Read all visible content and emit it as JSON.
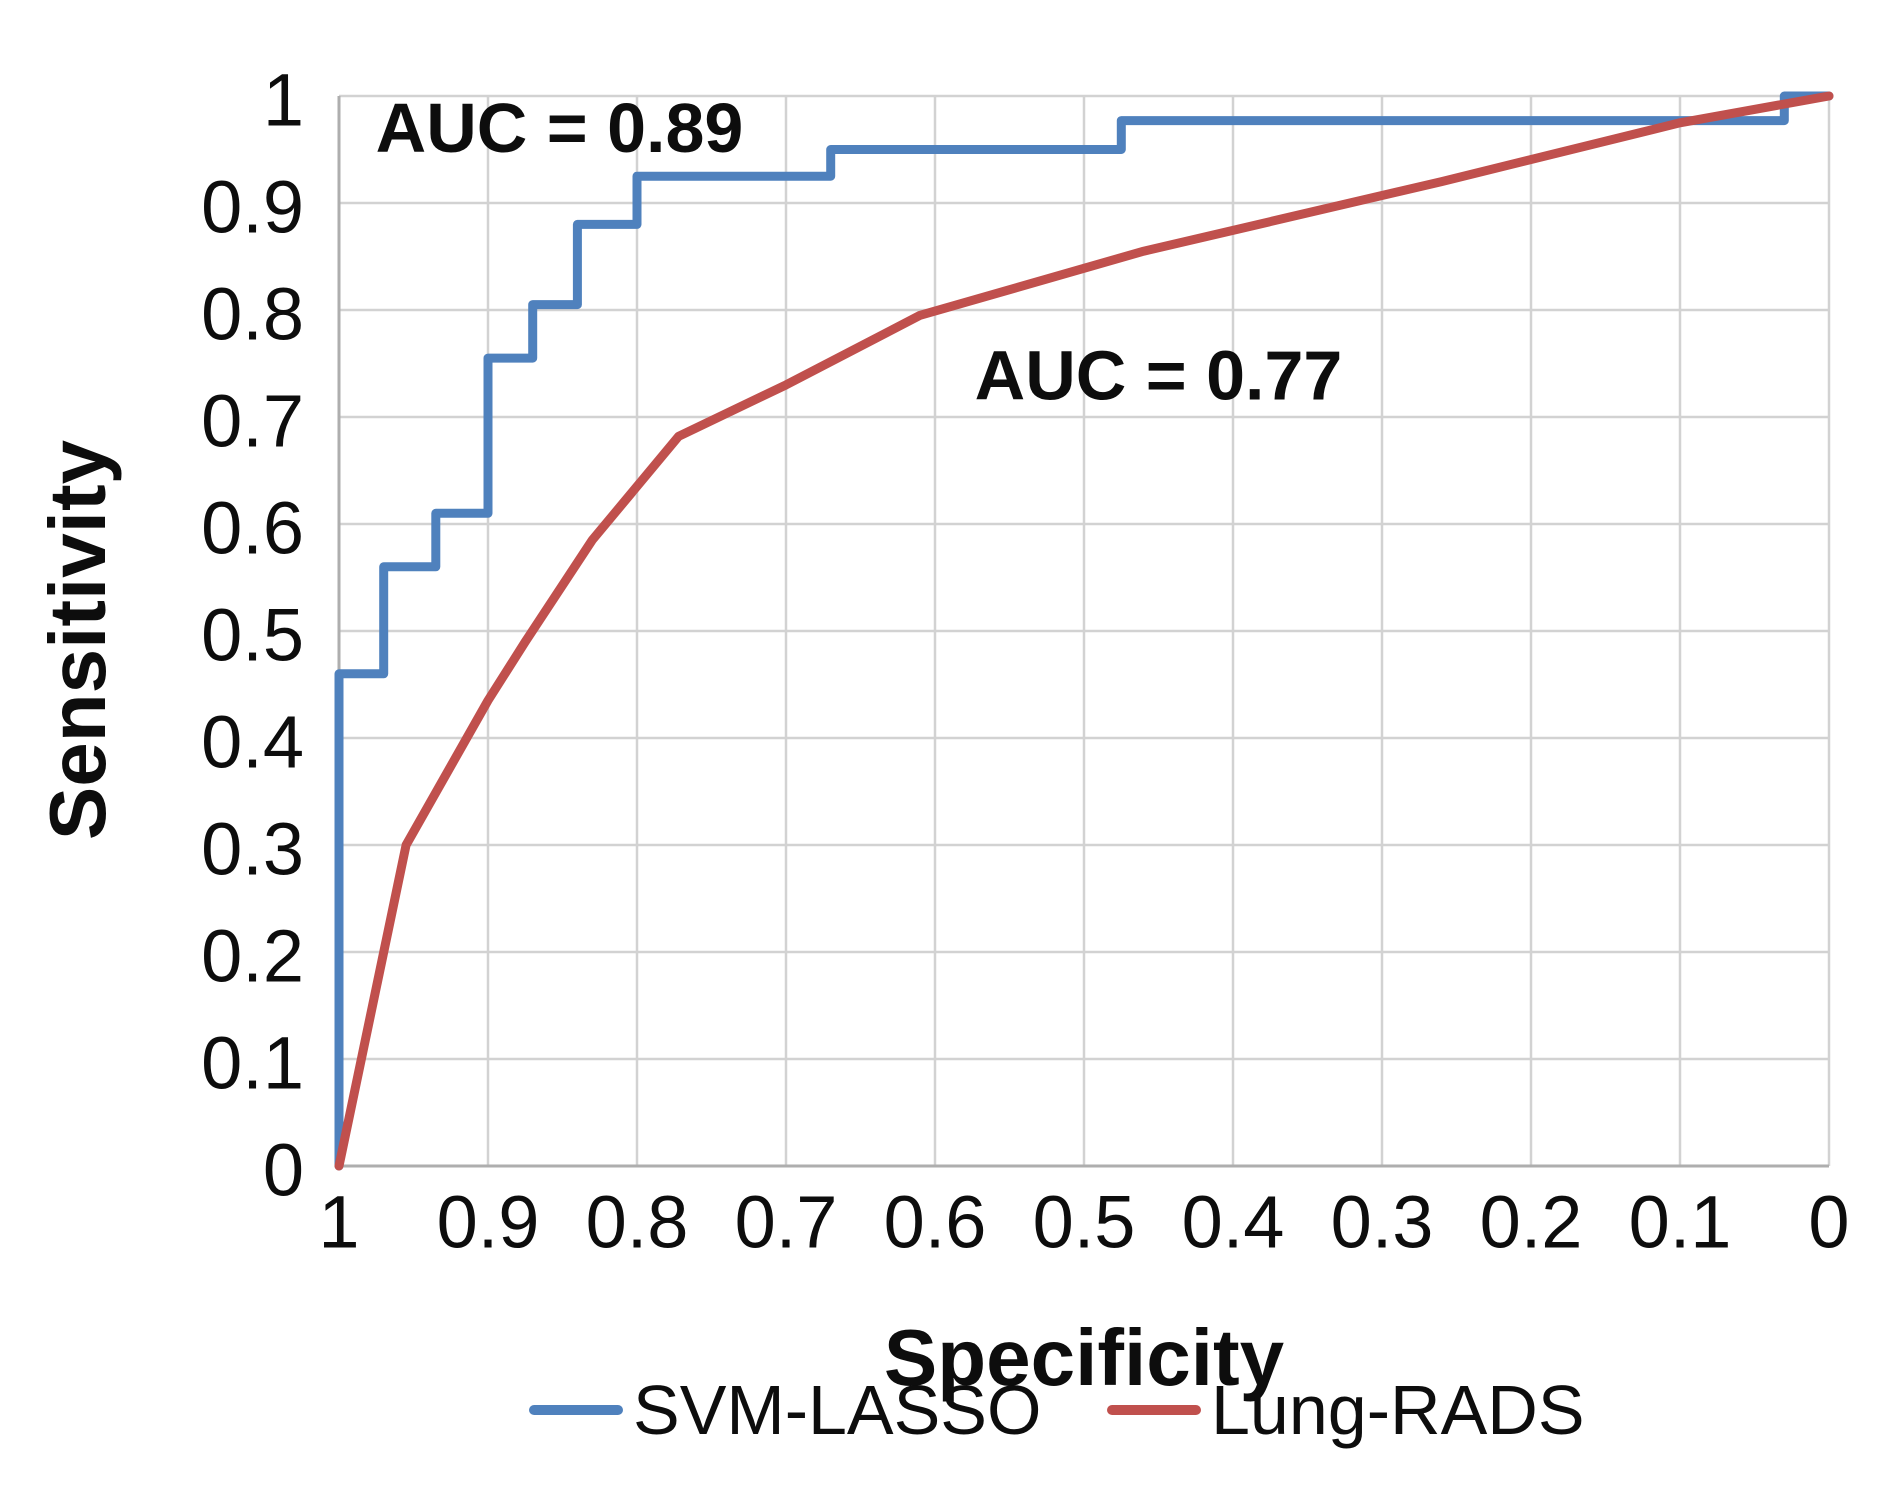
{
  "figure": {
    "background": "#ffffff",
    "text_color": "#0d0d0d",
    "gridline_color": "#d2d2d2",
    "axis_color": "#aeaeae"
  },
  "chart_data": {
    "type": "line",
    "subtype": "roc-curve",
    "title": "",
    "xlabel": "Specificity",
    "ylabel": "Sensitivity",
    "grid": true,
    "legend_position": "bottom",
    "x_axis": {
      "min": 0,
      "max": 1,
      "reversed": true,
      "ticks": [
        {
          "label": "1",
          "value": 1.0
        },
        {
          "label": "0.9",
          "value": 0.9
        },
        {
          "label": "0.8",
          "value": 0.8
        },
        {
          "label": "0.7",
          "value": 0.7
        },
        {
          "label": "0.6",
          "value": 0.6
        },
        {
          "label": "0.5",
          "value": 0.5
        },
        {
          "label": "0.4",
          "value": 0.4
        },
        {
          "label": "0.3",
          "value": 0.3
        },
        {
          "label": "0.2",
          "value": 0.2
        },
        {
          "label": "0.1",
          "value": 0.1
        },
        {
          "label": "0",
          "value": 0.0
        }
      ]
    },
    "y_axis": {
      "min": 0,
      "max": 1,
      "ticks": [
        {
          "label": "0",
          "value": 0.0
        },
        {
          "label": "0.1",
          "value": 0.1
        },
        {
          "label": "0.2",
          "value": 0.2
        },
        {
          "label": "0.3",
          "value": 0.3
        },
        {
          "label": "0.4",
          "value": 0.4
        },
        {
          "label": "0.5",
          "value": 0.5
        },
        {
          "label": "0.6",
          "value": 0.6
        },
        {
          "label": "0.7",
          "value": 0.7
        },
        {
          "label": "0.8",
          "value": 0.8
        },
        {
          "label": "0.9",
          "value": 0.9
        },
        {
          "label": "1",
          "value": 1.0
        }
      ]
    },
    "series": [
      {
        "name": "SVM-LASSO",
        "color": "#4F81BD",
        "auc": 0.89,
        "style": "step",
        "points": [
          [
            1.0,
            0.0
          ],
          [
            1.0,
            0.46
          ],
          [
            0.97,
            0.46
          ],
          [
            0.97,
            0.56
          ],
          [
            0.935,
            0.56
          ],
          [
            0.935,
            0.61
          ],
          [
            0.9,
            0.61
          ],
          [
            0.9,
            0.755
          ],
          [
            0.87,
            0.755
          ],
          [
            0.87,
            0.805
          ],
          [
            0.84,
            0.805
          ],
          [
            0.84,
            0.88
          ],
          [
            0.8,
            0.88
          ],
          [
            0.8,
            0.925
          ],
          [
            0.67,
            0.925
          ],
          [
            0.67,
            0.95
          ],
          [
            0.475,
            0.95
          ],
          [
            0.475,
            0.977
          ],
          [
            0.03,
            0.977
          ],
          [
            0.03,
            1.0
          ],
          [
            0.0,
            1.0
          ]
        ]
      },
      {
        "name": "Lung-RADS",
        "color": "#C0504D",
        "auc": 0.77,
        "style": "line",
        "points": [
          [
            1.0,
            0.0
          ],
          [
            0.955,
            0.3
          ],
          [
            0.9,
            0.435
          ],
          [
            0.875,
            0.49
          ],
          [
            0.83,
            0.585
          ],
          [
            0.772,
            0.682
          ],
          [
            0.7,
            0.73
          ],
          [
            0.61,
            0.795
          ],
          [
            0.46,
            0.855
          ],
          [
            0.26,
            0.92
          ],
          [
            0.1,
            0.975
          ],
          [
            0.0,
            1.0
          ]
        ]
      }
    ],
    "annotations": [
      {
        "text": "AUC = 0.89",
        "series": "SVM-LASSO",
        "spec": 0.852,
        "sens": 0.97
      },
      {
        "text": "AUC = 0.77",
        "series": "Lung-RADS",
        "spec": 0.45,
        "sens": 0.739
      }
    ]
  }
}
